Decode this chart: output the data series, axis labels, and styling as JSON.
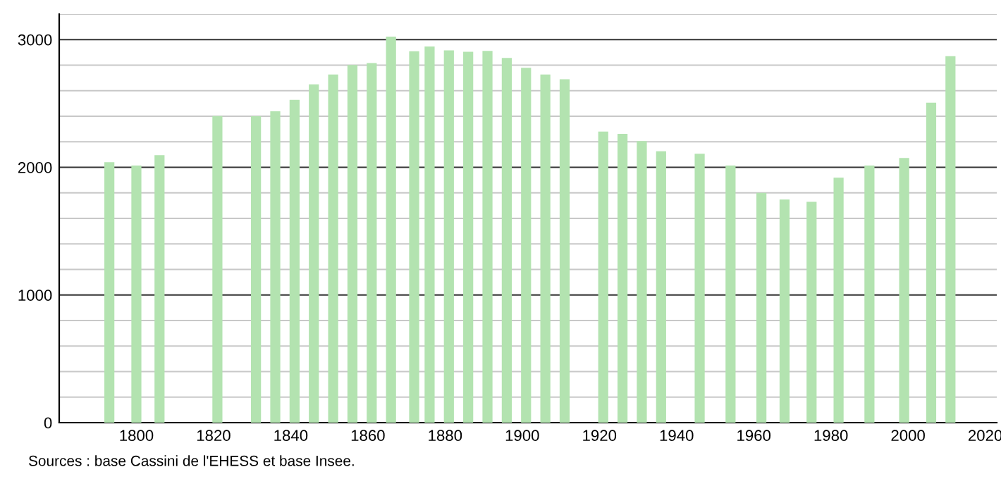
{
  "chart_data": {
    "type": "bar",
    "x": [
      1793,
      1800,
      1806,
      1821,
      1831,
      1836,
      1841,
      1846,
      1851,
      1856,
      1861,
      1866,
      1872,
      1876,
      1881,
      1886,
      1891,
      1896,
      1901,
      1906,
      1911,
      1921,
      1926,
      1931,
      1936,
      1946,
      1954,
      1962,
      1968,
      1975,
      1982,
      1990,
      1999,
      2006,
      2011
    ],
    "values": [
      2040,
      2014,
      2095,
      2402,
      2400,
      2439,
      2528,
      2650,
      2727,
      2801,
      2816,
      3023,
      2909,
      2946,
      2916,
      2905,
      2912,
      2856,
      2779,
      2727,
      2690,
      2280,
      2262,
      2206,
      2125,
      2106,
      2014,
      1800,
      1748,
      1729,
      1918,
      2014,
      2073,
      2506,
      2871
    ],
    "color": "#b3e3b0",
    "xlim": [
      1780,
      2023
    ],
    "xticks": [
      1800,
      1820,
      1840,
      1860,
      1880,
      1900,
      1920,
      1940,
      1960,
      1980,
      2000,
      2020
    ],
    "ylim": [
      0,
      3200
    ],
    "yticks": [
      0,
      {
        "value": 200,
        "label": null
      },
      {
        "value": 400,
        "label": null
      },
      {
        "value": 600,
        "label": null
      },
      {
        "value": 800,
        "label": null
      },
      1000,
      {
        "value": 1200,
        "label": null
      },
      {
        "value": 1400,
        "label": null
      },
      {
        "value": 1600,
        "label": null
      },
      {
        "value": 1800,
        "label": null
      },
      2000,
      {
        "value": 2200,
        "label": null
      },
      {
        "value": 2400,
        "label": null
      },
      {
        "value": 2600,
        "label": null
      },
      {
        "value": 2800,
        "label": null
      },
      3000,
      {
        "value": 3200,
        "label": null
      }
    ],
    "grid": "y",
    "annotations": [
      "Sources : base Cassini de l'EHESS et base Insee."
    ]
  }
}
